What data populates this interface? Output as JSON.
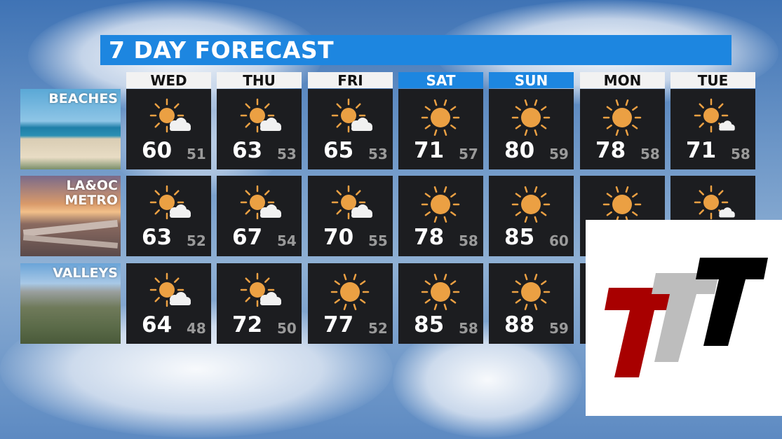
{
  "title": "7 DAY FORECAST",
  "days": [
    {
      "label": "WED",
      "weekend": false
    },
    {
      "label": "THU",
      "weekend": false
    },
    {
      "label": "FRI",
      "weekend": false
    },
    {
      "label": "SAT",
      "weekend": true
    },
    {
      "label": "SUN",
      "weekend": true
    },
    {
      "label": "MON",
      "weekend": false
    },
    {
      "label": "TUE",
      "weekend": false
    }
  ],
  "regions": [
    {
      "name": "BEACHES",
      "scene": "beach",
      "forecast": [
        {
          "icon": "partly-sunny-icon",
          "hi": "60",
          "lo": "51"
        },
        {
          "icon": "partly-sunny-icon",
          "hi": "63",
          "lo": "53"
        },
        {
          "icon": "partly-sunny-icon",
          "hi": "65",
          "lo": "53"
        },
        {
          "icon": "sunny-icon",
          "hi": "71",
          "lo": "57"
        },
        {
          "icon": "sunny-icon",
          "hi": "80",
          "lo": "59"
        },
        {
          "icon": "sunny-icon",
          "hi": "78",
          "lo": "58"
        },
        {
          "icon": "mostly-sunny-icon",
          "hi": "71",
          "lo": "58"
        }
      ]
    },
    {
      "name": "LA&OC METRO",
      "lines": [
        "LA&OC",
        "METRO"
      ],
      "scene": "freeway",
      "forecast": [
        {
          "icon": "partly-sunny-icon",
          "hi": "63",
          "lo": "52"
        },
        {
          "icon": "partly-sunny-icon",
          "hi": "67",
          "lo": "54"
        },
        {
          "icon": "partly-sunny-icon",
          "hi": "70",
          "lo": "55"
        },
        {
          "icon": "sunny-icon",
          "hi": "78",
          "lo": "58"
        },
        {
          "icon": "sunny-icon",
          "hi": "85",
          "lo": "60"
        },
        {
          "icon": "sunny-icon"
        },
        {
          "icon": "mostly-sunny-icon"
        }
      ]
    },
    {
      "name": "VALLEYS",
      "scene": "valley",
      "forecast": [
        {
          "icon": "partly-sunny-icon",
          "hi": "64",
          "lo": "48"
        },
        {
          "icon": "partly-sunny-icon",
          "hi": "72",
          "lo": "50"
        },
        {
          "icon": "sunny-icon",
          "hi": "77",
          "lo": "52"
        },
        {
          "icon": "sunny-icon",
          "hi": "85",
          "lo": "58"
        },
        {
          "icon": "sunny-icon",
          "hi": "88",
          "lo": "59"
        },
        {},
        {}
      ]
    }
  ],
  "colors": {
    "title_bar": "#1d86e0",
    "sun": "#eba043",
    "tile": "#1c1d20",
    "logo_red": "#a80000",
    "logo_gray": "#bdbdbd",
    "logo_black": "#000000"
  },
  "logo": {
    "text": "TTT"
  }
}
